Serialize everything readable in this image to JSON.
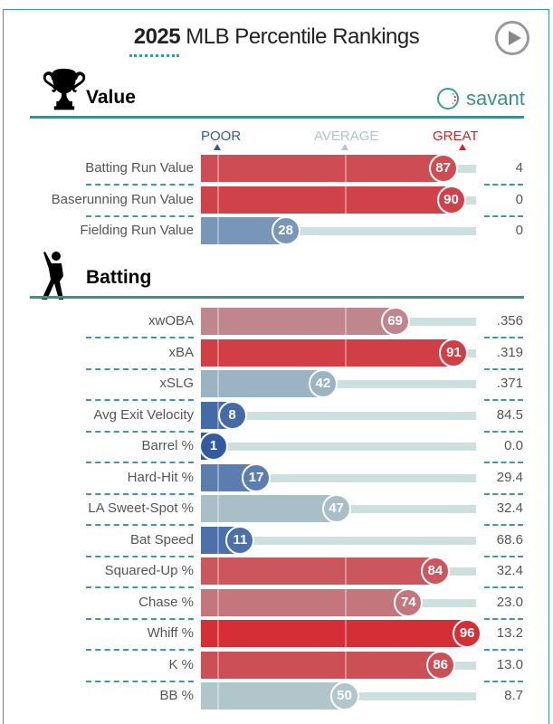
{
  "header": {
    "title_year": "2025",
    "title_rest": " MLB Percentile Rankings",
    "play_icon": "play-icon",
    "brand": "savant"
  },
  "scale": {
    "poor": "POOR",
    "average": "AVERAGE",
    "great": "GREAT",
    "poor_color": "#2f58a2",
    "average_color": "#b0c6ca",
    "great_color": "#d82129"
  },
  "chart_data": {
    "type": "bar",
    "xlim": [
      0,
      100
    ],
    "sections": [
      {
        "title": "Value",
        "icon": "trophy-icon",
        "rows": [
          {
            "label": "Batting Run Value",
            "percentile": 87,
            "value": "4"
          },
          {
            "label": "Baserunning Run Value",
            "percentile": 90,
            "value": "0"
          },
          {
            "label": "Fielding Run Value",
            "percentile": 28,
            "value": "0"
          }
        ]
      },
      {
        "title": "Batting",
        "icon": "batter-icon",
        "rows": [
          {
            "label": "xwOBA",
            "percentile": 69,
            "value": ".356"
          },
          {
            "label": "xBA",
            "percentile": 91,
            "value": ".319"
          },
          {
            "label": "xSLG",
            "percentile": 42,
            "value": ".371"
          },
          {
            "label": "Avg Exit Velocity",
            "percentile": 8,
            "value": "84.5"
          },
          {
            "label": "Barrel %",
            "percentile": 1,
            "value": "0.0"
          },
          {
            "label": "Hard-Hit %",
            "percentile": 17,
            "value": "29.4"
          },
          {
            "label": "LA Sweet-Spot %",
            "percentile": 47,
            "value": "32.4"
          },
          {
            "label": "Bat Speed",
            "percentile": 11,
            "value": "68.6"
          },
          {
            "label": "Squared-Up %",
            "percentile": 84,
            "value": "32.4"
          },
          {
            "label": "Chase %",
            "percentile": 74,
            "value": "23.0"
          },
          {
            "label": "Whiff %",
            "percentile": 96,
            "value": "13.2"
          },
          {
            "label": "K %",
            "percentile": 86,
            "value": "13.0"
          },
          {
            "label": "BB %",
            "percentile": 50,
            "value": "8.7"
          }
        ]
      }
    ]
  }
}
